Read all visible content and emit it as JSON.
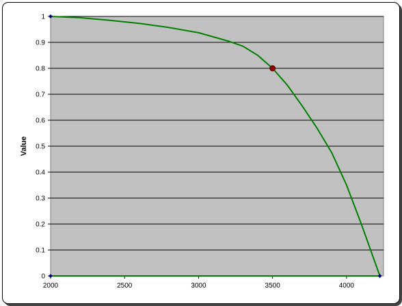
{
  "chart_data": {
    "type": "line",
    "title": "",
    "xlabel": "",
    "ylabel": "Value",
    "xlim": [
      2000,
      4250
    ],
    "ylim": [
      0,
      1
    ],
    "x_ticks": [
      "2000",
      "2500",
      "3000",
      "3500",
      "4000"
    ],
    "y_ticks": [
      "0",
      "0.1",
      "0.2",
      "0.3",
      "0.4",
      "0.5",
      "0.6",
      "0.7",
      "0.8",
      "0.9",
      "1"
    ],
    "grid": "horizontal",
    "legend": "none",
    "series": [
      {
        "type": "line",
        "color": "#008000",
        "points": [
          [
            2000,
            1.0
          ],
          [
            2200,
            0.995
          ],
          [
            2400,
            0.985
          ],
          [
            2600,
            0.973
          ],
          [
            2800,
            0.957
          ],
          [
            3000,
            0.937
          ],
          [
            3200,
            0.905
          ],
          [
            3300,
            0.885
          ],
          [
            3400,
            0.85
          ],
          [
            3500,
            0.8
          ],
          [
            3600,
            0.735
          ],
          [
            3700,
            0.655
          ],
          [
            3800,
            0.57
          ],
          [
            3900,
            0.475
          ],
          [
            4000,
            0.35
          ],
          [
            4100,
            0.2
          ],
          [
            4200,
            0.04
          ],
          [
            4225,
            0.0
          ]
        ]
      },
      {
        "type": "line",
        "color": "#008000",
        "points": [
          [
            2000,
            0
          ],
          [
            4225,
            0
          ]
        ]
      }
    ],
    "markers": [
      {
        "x": 2000,
        "y": 1,
        "color": "#000080"
      },
      {
        "x": 2000,
        "y": 0,
        "color": "#000080"
      },
      {
        "x": 4225,
        "y": 0,
        "color": "#000080"
      },
      {
        "x": 3500,
        "y": 0.8,
        "color": "#8b0000"
      }
    ],
    "colors": {
      "plot_background": "#c0c0c0",
      "gridline": "#000000"
    }
  }
}
